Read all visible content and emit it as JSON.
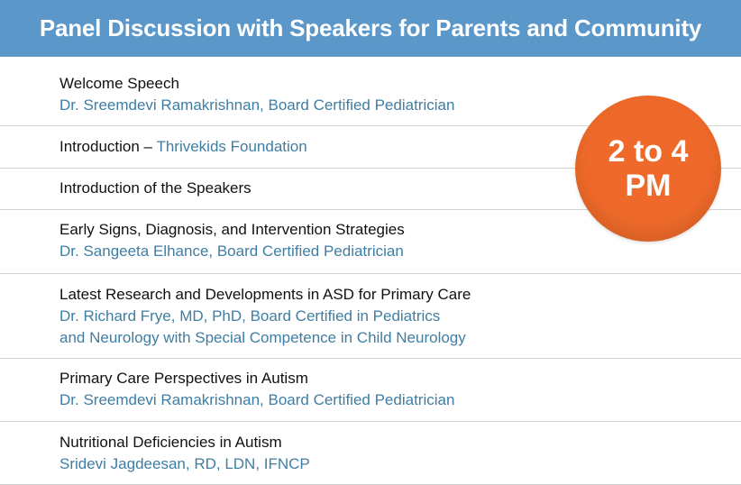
{
  "header": {
    "title": "Panel Discussion with Speakers for Parents and Community"
  },
  "time_badge": {
    "line1": "2 to 4",
    "line2": "PM",
    "color": "#ef6a2a"
  },
  "agenda": [
    {
      "title": "Welcome Speech",
      "speaker": [
        "Dr. Sreemdevi Ramakrishnan, Board Certified Pediatrician"
      ]
    },
    {
      "title": "Introduction – ",
      "inline_speaker": "Thrivekids Foundation"
    },
    {
      "title": "Introduction of the Speakers"
    },
    {
      "title": "Early Signs, Diagnosis, and Intervention Strategies",
      "speaker": [
        "Dr. Sangeeta Elhance, Board Certified Pediatrician"
      ]
    },
    {
      "title": "Latest Research and Developments in ASD for Primary Care",
      "speaker": [
        "Dr. Richard Frye, MD, PhD, Board Certified in Pediatrics",
        "and Neurology with Special Competence in Child Neurology"
      ]
    },
    {
      "title": "Primary Care Perspectives in Autism",
      "speaker": [
        "Dr. Sreemdevi Ramakrishnan, Board Certified Pediatrician"
      ]
    },
    {
      "title": "Nutritional Deficiencies in Autism",
      "speaker": [
        "Sridevi Jagdeesan, RD, LDN, IFNCP"
      ]
    }
  ],
  "colors": {
    "header_bg": "#5b97c9",
    "speaker_text": "#3f7ea3",
    "title_text": "#111111"
  }
}
